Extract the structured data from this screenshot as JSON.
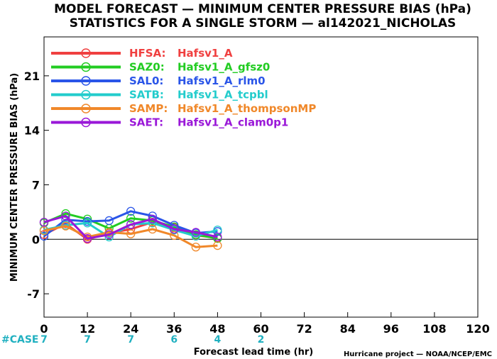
{
  "title_line1": "MODEL FORECAST — MINIMUM CENTER PRESSURE BIAS (hPa)",
  "title_line2": "STATISTICS FOR A SINGLE STORM — al142021_NICHOLAS",
  "credit": "Hurricane project — NOAA/NCEP/EMC",
  "case_label": "#CASE",
  "colors": {
    "HFSA": "#f04040",
    "SAZ0": "#22cc22",
    "SAL0": "#2a55e8",
    "SATB": "#22cccc",
    "SAMP": "#f0882a",
    "SAET": "#9a18d8"
  },
  "chart_data": {
    "type": "line",
    "xlabel": "Forecast lead time (hr)",
    "ylabel": "MINIMUM CENTER PRESSURE BIAS (hPa)",
    "xlim": [
      0,
      120
    ],
    "ylim": [
      -10,
      26
    ],
    "x_ticks": [
      0,
      12,
      24,
      36,
      48,
      60,
      72,
      84,
      96,
      108,
      120
    ],
    "y_ticks": [
      -7,
      0,
      7,
      14,
      21
    ],
    "grid": false,
    "legend_position": "top-left",
    "zero_line": 0,
    "case_counts": [
      {
        "x": 0,
        "n": "7"
      },
      {
        "x": 12,
        "n": "7"
      },
      {
        "x": 24,
        "n": "7"
      },
      {
        "x": 36,
        "n": "6"
      },
      {
        "x": 48,
        "n": "4"
      },
      {
        "x": 60,
        "n": "2"
      }
    ],
    "series": [
      {
        "key": "HFSA",
        "id": "HFSA:",
        "name": "Hafsv1_A",
        "x": [
          0,
          6,
          12,
          18,
          24,
          30,
          36,
          42,
          48
        ],
        "y": [
          0.6,
          2.0,
          0.0,
          0.8,
          1.3,
          2.2,
          1.5,
          0.5,
          0.2
        ]
      },
      {
        "key": "SAZ0",
        "id": "SAZ0:",
        "name": "Hafsv1_A_gfsz0",
        "x": [
          0,
          6,
          12,
          18,
          24,
          30,
          36,
          42,
          48
        ],
        "y": [
          2.1,
          3.3,
          2.6,
          1.4,
          2.7,
          2.4,
          1.6,
          0.6,
          0.1
        ]
      },
      {
        "key": "SAL0",
        "id": "SAL0:",
        "name": "Hafsv1_A_rlm0",
        "x": [
          0,
          6,
          12,
          18,
          24,
          30,
          36,
          42,
          48
        ],
        "y": [
          0.4,
          2.5,
          2.3,
          2.4,
          3.6,
          3.0,
          1.8,
          0.8,
          1.0
        ]
      },
      {
        "key": "SATB",
        "id": "SATB:",
        "name": "Hafsv1_A_tcpbl",
        "x": [
          0,
          6,
          12,
          18,
          24,
          30,
          36,
          42,
          48
        ],
        "y": [
          1.2,
          1.8,
          2.1,
          0.3,
          1.9,
          2.1,
          1.2,
          0.4,
          1.2
        ]
      },
      {
        "key": "SAMP",
        "id": "SAMP:",
        "name": "Hafsv1_A_thompsonMP",
        "x": [
          0,
          6,
          12,
          18,
          24,
          30,
          36,
          42,
          48
        ],
        "y": [
          1.1,
          1.7,
          0.3,
          0.9,
          0.7,
          1.3,
          0.5,
          -1.0,
          -0.8
        ]
      },
      {
        "key": "SAET",
        "id": "SAET:",
        "name": "Hafsv1_A_clam0p1",
        "x": [
          0,
          6,
          12,
          18,
          24,
          30,
          36,
          42,
          48
        ],
        "y": [
          2.2,
          3.0,
          0.1,
          0.6,
          1.9,
          2.6,
          1.3,
          0.9,
          0.3
        ]
      }
    ]
  }
}
